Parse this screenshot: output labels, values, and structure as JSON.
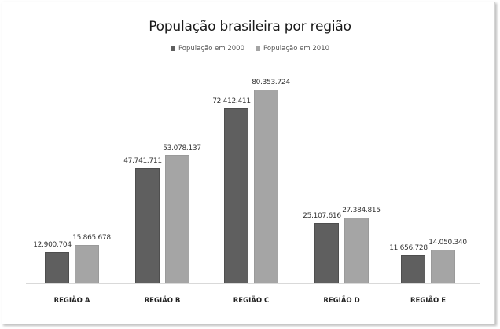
{
  "chart_data": {
    "type": "bar",
    "title": "População brasileira por região",
    "xlabel": "",
    "ylabel": "",
    "categories": [
      "REGIÃO A",
      "REGIÃO B",
      "REGIÃO C",
      "REGIÃO D",
      "REGIÃO E"
    ],
    "series": [
      {
        "name": "População em 2000",
        "color": "#5f5f5f",
        "values": [
          12900704,
          47741711,
          72412411,
          25107616,
          11656728
        ],
        "labels": [
          "12.900.704",
          "47.741.711",
          "72.412.411",
          "25.107.616",
          "11.656.728"
        ]
      },
      {
        "name": "População em 2010",
        "color": "#a5a5a5",
        "values": [
          15865678,
          53078137,
          80353724,
          27384815,
          14050340
        ],
        "labels": [
          "15.865.678",
          "53.078.137",
          "80.353.724",
          "27.384.815",
          "14.050.340"
        ]
      }
    ],
    "legend_position": "top",
    "grid": false,
    "ylim": [
      0,
      80353724
    ]
  }
}
